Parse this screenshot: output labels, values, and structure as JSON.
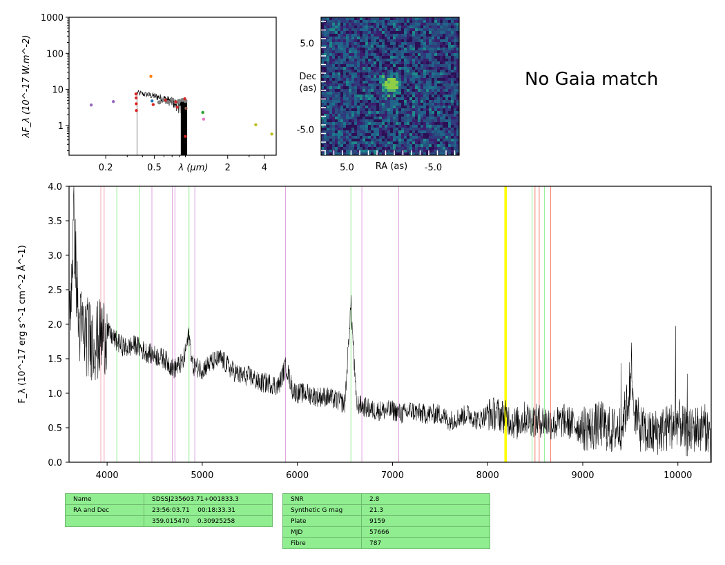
{
  "no_gaia_text": "No Gaia match",
  "chart_data": [
    {
      "type": "scatter",
      "panel": "sed",
      "xlabel": "λ (μm)",
      "ylabel": "λF_λ (10^-17 W.m^-2)",
      "xscale": "log",
      "yscale": "log",
      "xlim": [
        0.1,
        5.0
      ],
      "ylim": [
        0.15,
        1000
      ],
      "xtick_labels": [
        "0.2",
        "0.5",
        "2",
        "4"
      ],
      "ytick_labels": [
        "1",
        "10",
        "100",
        "1000"
      ],
      "photometry": [
        {
          "x": 0.152,
          "y": 3.7,
          "color": "#9467bd"
        },
        {
          "x": 0.231,
          "y": 4.6,
          "color": "#9467bd"
        },
        {
          "x": 0.354,
          "y": 7.5,
          "color": "#d62728"
        },
        {
          "x": 0.355,
          "y": 5.8,
          "color": "#d62728"
        },
        {
          "x": 0.356,
          "y": 4.0,
          "color": "#d62728"
        },
        {
          "x": 0.357,
          "y": 2.6,
          "color": "#d62728"
        },
        {
          "x": 0.469,
          "y": 23.0,
          "color": "#ff7f0e"
        },
        {
          "x": 0.48,
          "y": 4.8,
          "color": "#1f77b4"
        },
        {
          "x": 0.49,
          "y": 3.8,
          "color": "#d62728"
        },
        {
          "x": 0.62,
          "y": 5.0,
          "color": "#d62728"
        },
        {
          "x": 0.75,
          "y": 4.5,
          "color": "#d62728"
        },
        {
          "x": 0.77,
          "y": 3.2,
          "color": "#d62728"
        },
        {
          "x": 0.89,
          "y": 5.5,
          "color": "#d62728"
        },
        {
          "x": 0.9,
          "y": 0.5,
          "color": "#d62728"
        },
        {
          "x": 0.91,
          "y": 3.0,
          "color": "#8c564b"
        },
        {
          "x": 1.25,
          "y": 2.3,
          "color": "#2ca02c"
        },
        {
          "x": 1.27,
          "y": 1.5,
          "color": "#e377c2"
        },
        {
          "x": 3.4,
          "y": 1.05,
          "color": "#bcbd22"
        },
        {
          "x": 4.6,
          "y": 0.58,
          "color": "#bcbd22"
        }
      ]
    },
    {
      "type": "heatmap",
      "panel": "image",
      "xlabel": "RA (as)",
      "ylabel": "Dec\n(as)",
      "xlim": [
        8.0,
        -8.0
      ],
      "ylim": [
        -8.0,
        8.0
      ],
      "xtick_labels": [
        "5.0",
        "-5.0"
      ],
      "ytick_labels": [
        "5.0",
        "-5.0"
      ],
      "source": {
        "ra": 0.0,
        "dec": 0.0
      }
    },
    {
      "type": "line",
      "panel": "spectrum",
      "xlabel": "",
      "ylabel": "F_λ (10^-17 erg s^-1 cm^-2 Å^-1)",
      "xlim": [
        3600,
        10350
      ],
      "ylim": [
        0.0,
        4.0
      ],
      "xticks": [
        4000,
        5000,
        6000,
        7000,
        8000,
        9000,
        10000
      ],
      "yticks": [
        0.0,
        0.5,
        1.0,
        1.5,
        2.0,
        2.5,
        3.0,
        3.5,
        4.0
      ],
      "x": [
        3600,
        3650,
        3700,
        3800,
        3900,
        4000,
        4100,
        4200,
        4300,
        4400,
        4500,
        4600,
        4700,
        4800,
        4860,
        4900,
        5000,
        5100,
        5200,
        5300,
        5400,
        5500,
        5600,
        5700,
        5800,
        5880,
        5950,
        6000,
        6100,
        6200,
        6300,
        6400,
        6500,
        6563,
        6620,
        6700,
        6800,
        6900,
        7000,
        7100,
        7200,
        7300,
        7400,
        7500,
        7600,
        7700,
        7800,
        7900,
        8000,
        8100,
        8200,
        8300,
        8400,
        8500,
        8600,
        8700,
        8800,
        8900,
        9000,
        9100,
        9200,
        9300,
        9400,
        9500,
        9600,
        9700,
        9800,
        9900,
        10000,
        10100,
        10200,
        10300,
        10350
      ],
      "y": [
        1.8,
        3.5,
        2.0,
        1.8,
        1.75,
        1.9,
        1.75,
        1.65,
        1.7,
        1.6,
        1.55,
        1.5,
        1.35,
        1.45,
        1.85,
        1.4,
        1.35,
        1.45,
        1.5,
        1.35,
        1.25,
        1.25,
        1.15,
        1.15,
        1.1,
        1.4,
        1.05,
        1.0,
        1.0,
        0.95,
        0.95,
        0.9,
        0.85,
        2.3,
        0.85,
        0.8,
        0.75,
        0.75,
        0.75,
        0.7,
        0.75,
        0.7,
        0.7,
        0.7,
        0.6,
        0.65,
        0.7,
        0.6,
        0.7,
        0.7,
        0.65,
        0.55,
        0.65,
        0.6,
        0.6,
        0.55,
        0.6,
        0.55,
        0.5,
        0.5,
        0.55,
        0.45,
        0.5,
        1.0,
        0.5,
        0.4,
        0.45,
        0.5,
        0.6,
        0.4,
        0.5,
        0.5,
        0.3
      ],
      "vlines": [
        {
          "x": 3934,
          "color": "#f4a6b4"
        },
        {
          "x": 3969,
          "color": "#f4a6b4"
        },
        {
          "x": 4102,
          "color": "#90ee90"
        },
        {
          "x": 4341,
          "color": "#90ee90"
        },
        {
          "x": 4471,
          "color": "#dda0dd"
        },
        {
          "x": 4686,
          "color": "#dda0dd"
        },
        {
          "x": 4713,
          "color": "#dda0dd"
        },
        {
          "x": 4861,
          "color": "#90ee90"
        },
        {
          "x": 4922,
          "color": "#dda0dd"
        },
        {
          "x": 5876,
          "color": "#dda0dd"
        },
        {
          "x": 6563,
          "color": "#90ee90"
        },
        {
          "x": 6678,
          "color": "#dda0dd"
        },
        {
          "x": 7065,
          "color": "#dda0dd"
        },
        {
          "x": 8183,
          "color": "#ffff00"
        },
        {
          "x": 8195,
          "color": "#ffff00"
        },
        {
          "x": 8467,
          "color": "#90ee90"
        },
        {
          "x": 8498,
          "color": "#fa8072"
        },
        {
          "x": 8542,
          "color": "#fa8072"
        },
        {
          "x": 8598,
          "color": "#90ee90"
        },
        {
          "x": 8662,
          "color": "#fa8072"
        }
      ]
    }
  ],
  "table_left": [
    [
      "Name",
      "SDSSJ235603.71+001833.3"
    ],
    [
      "RA and Dec",
      "23:56:03.71    00:18:33.31"
    ],
    [
      "",
      "359.015470    0.30925258"
    ]
  ],
  "table_right": [
    [
      "SNR",
      "2.8"
    ],
    [
      "Synthetic G mag",
      "21.3"
    ],
    [
      "Plate",
      "9159"
    ],
    [
      "MJD",
      "57666"
    ],
    [
      "Fibre",
      "787"
    ]
  ]
}
